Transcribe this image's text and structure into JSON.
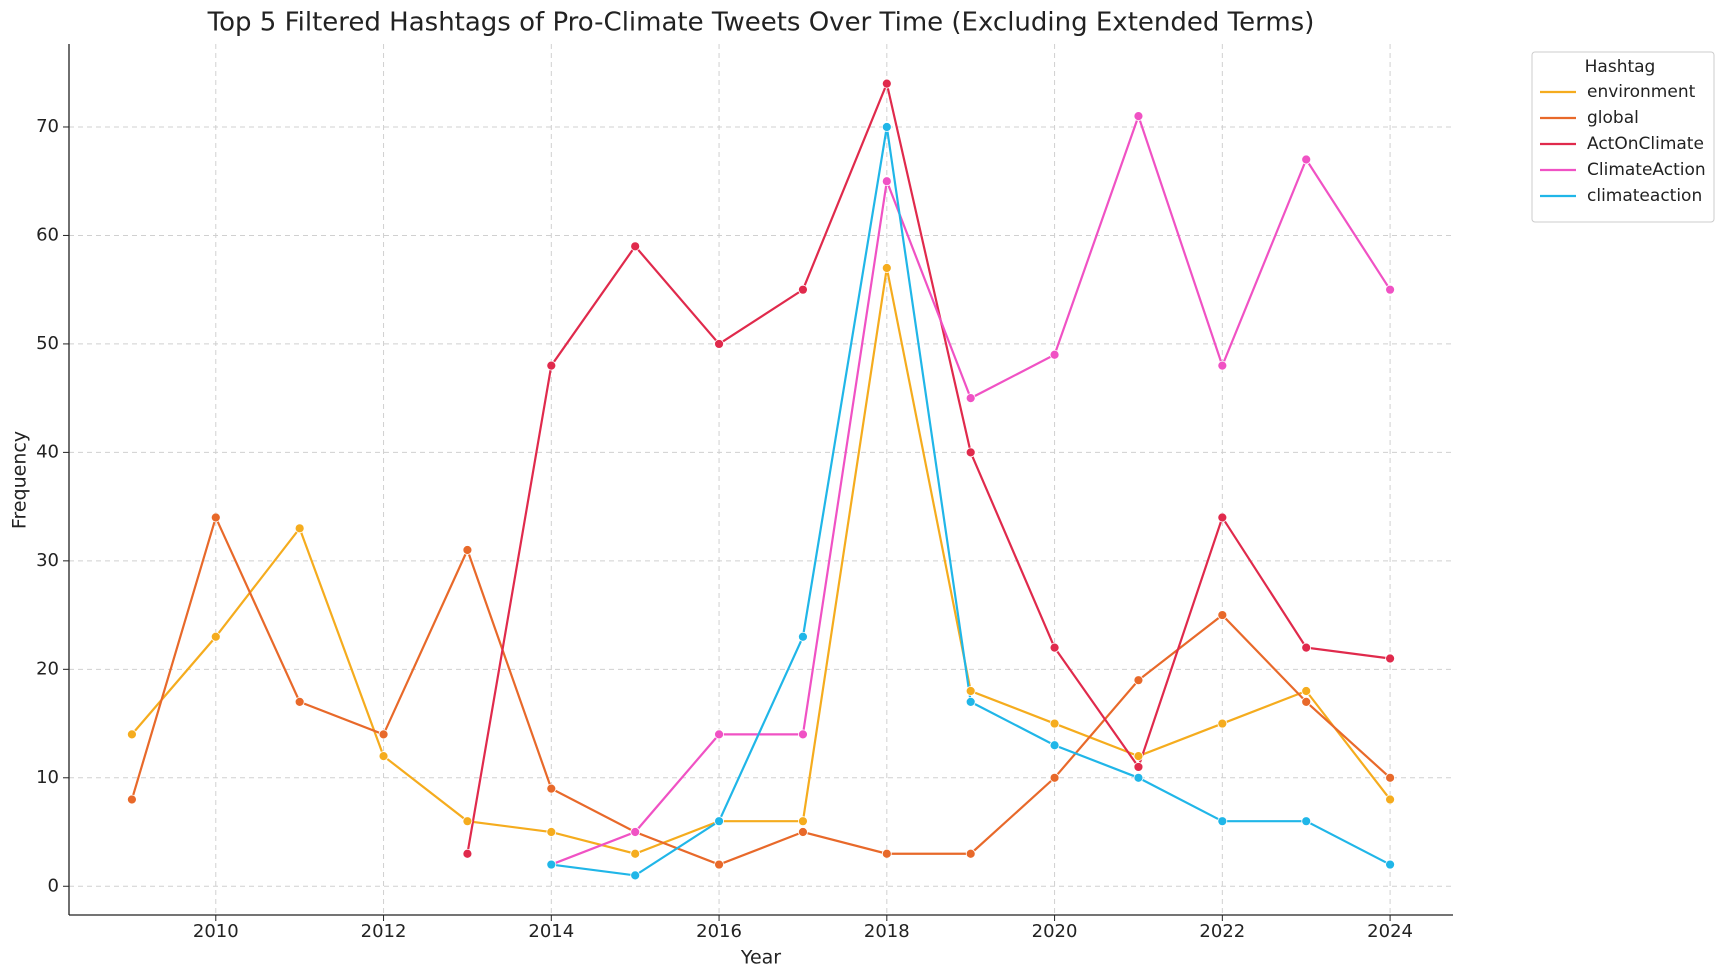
{
  "chart_data": {
    "type": "line",
    "title": "Top 5 Filtered Hashtags of Pro-Climate Tweets Over Time (Excluding Extended Terms)",
    "x_label": "Year",
    "y_label": "Frequency",
    "x": [
      2009,
      2010,
      2011,
      2012,
      2013,
      2014,
      2015,
      2016,
      2017,
      2018,
      2019,
      2020,
      2021,
      2022,
      2023,
      2024
    ],
    "series": [
      {
        "name": "environment",
        "color": "#f5ac1e",
        "values": [
          14,
          23,
          33,
          12,
          6,
          5,
          3,
          6,
          6,
          57,
          18,
          15,
          12,
          15,
          18,
          8
        ]
      },
      {
        "name": "global",
        "color": "#e8692a",
        "values": [
          8,
          34,
          17,
          14,
          31,
          9,
          5,
          2,
          5,
          3,
          3,
          10,
          19,
          25,
          17,
          10
        ]
      },
      {
        "name": "ActOnClimate",
        "color": "#e02a4c",
        "values": [
          null,
          null,
          null,
          null,
          3,
          48,
          59,
          50,
          55,
          74,
          40,
          22,
          11,
          34,
          22,
          21
        ]
      },
      {
        "name": "ClimateAction",
        "color": "#f052c4",
        "values": [
          null,
          null,
          null,
          null,
          null,
          2,
          5,
          14,
          14,
          65,
          45,
          49,
          71,
          48,
          67,
          55
        ]
      },
      {
        "name": "climateaction",
        "color": "#20b6e8",
        "values": [
          null,
          null,
          null,
          null,
          null,
          2,
          1,
          6,
          23,
          70,
          17,
          13,
          10,
          6,
          6,
          2
        ]
      }
    ],
    "legend_title": "Hashtag",
    "legend": "outside upper right",
    "xlim": [
      2008.25,
      2024.75
    ],
    "xticks": [
      2010,
      2012,
      2014,
      2016,
      2018,
      2020,
      2022,
      2024
    ],
    "ylim": [
      -2.65,
      77.65
    ],
    "yticks": [
      0,
      10,
      20,
      30,
      40,
      50,
      60,
      70
    ],
    "grid": true
  }
}
